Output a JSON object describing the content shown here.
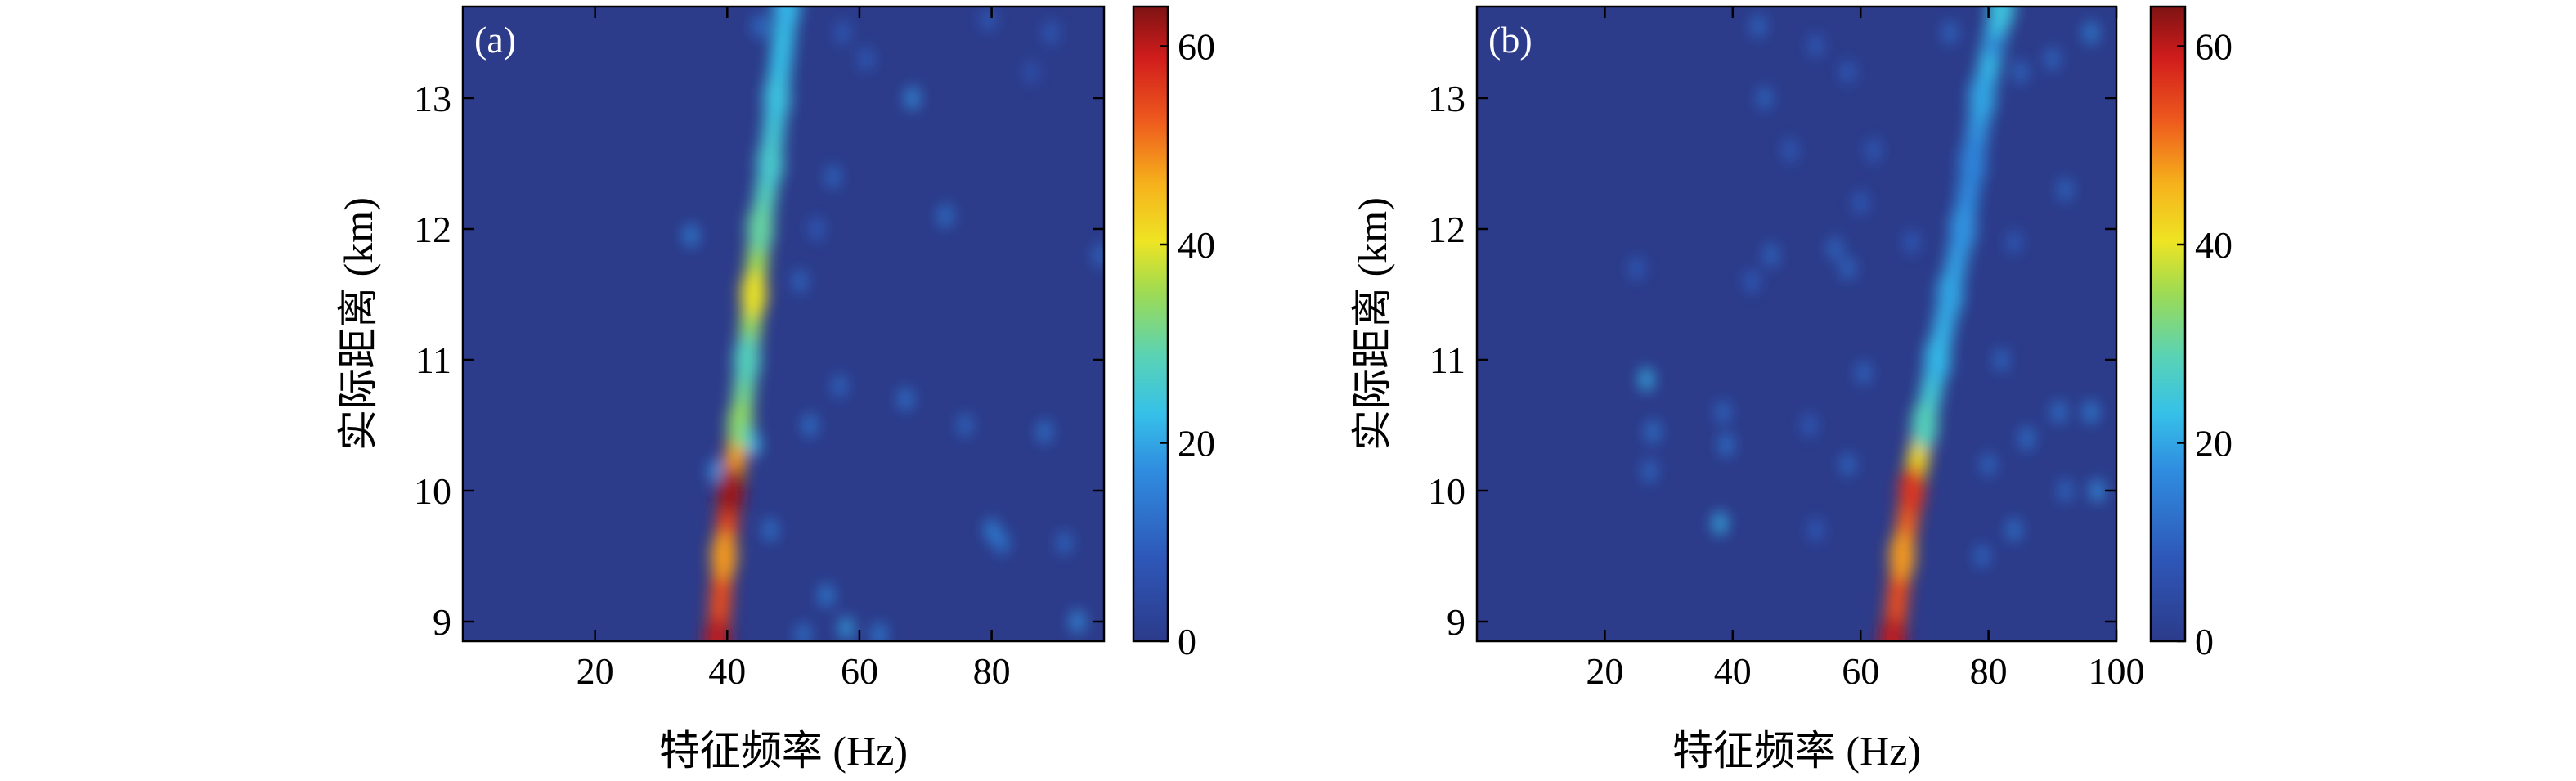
{
  "chart_data": [
    {
      "type": "heatmap",
      "panel_label": "(a)",
      "xlabel": "特征频率 (Hz)",
      "ylabel": "实际距离 (km)",
      "xlim": [
        0,
        97
      ],
      "ylim": [
        8.85,
        13.7
      ],
      "xticks": [
        20,
        40,
        60,
        80
      ],
      "yticks": [
        9,
        10,
        11,
        12,
        13
      ],
      "colorbar": {
        "range": [
          0,
          64
        ],
        "ticks": [
          0,
          20,
          40,
          60
        ]
      },
      "background_value": 5,
      "ridges": [
        {
          "points": [
            [
              38.5,
              8.85
            ],
            [
              39.5,
              9.5
            ],
            [
              40.5,
              10.0
            ],
            [
              42,
              10.5
            ],
            [
              43,
              11.0
            ],
            [
              44,
              11.5
            ],
            [
              45,
              12.0
            ],
            [
              46.5,
              12.5
            ],
            [
              47.5,
              13.0
            ],
            [
              49,
              13.7
            ]
          ],
          "values": [
            60,
            48,
            62,
            34,
            28,
            40,
            30,
            26,
            24,
            22
          ]
        }
      ],
      "spots": [
        {
          "x": 43,
          "y": 10.45,
          "value": 30
        },
        {
          "x": 38.2,
          "y": 10.15,
          "value": 18
        },
        {
          "x": 44,
          "y": 10.35,
          "value": 22
        },
        {
          "x": 34.5,
          "y": 11.95,
          "value": 16
        },
        {
          "x": 46.5,
          "y": 9.7,
          "value": 14
        },
        {
          "x": 51,
          "y": 11.6,
          "value": 12
        },
        {
          "x": 56,
          "y": 12.4,
          "value": 12
        },
        {
          "x": 52.5,
          "y": 10.5,
          "value": 14
        },
        {
          "x": 57,
          "y": 10.8,
          "value": 12
        },
        {
          "x": 53.5,
          "y": 12.0,
          "value": 10
        },
        {
          "x": 55,
          "y": 9.2,
          "value": 16
        },
        {
          "x": 73,
          "y": 12.1,
          "value": 14
        },
        {
          "x": 68,
          "y": 13.0,
          "value": 18
        },
        {
          "x": 61,
          "y": 13.3,
          "value": 10
        },
        {
          "x": 67,
          "y": 10.7,
          "value": 14
        },
        {
          "x": 76,
          "y": 10.5,
          "value": 12
        },
        {
          "x": 88,
          "y": 10.45,
          "value": 14
        },
        {
          "x": 80,
          "y": 9.7,
          "value": 16
        },
        {
          "x": 81.5,
          "y": 9.6,
          "value": 14
        },
        {
          "x": 91,
          "y": 9.6,
          "value": 12
        },
        {
          "x": 93,
          "y": 9.0,
          "value": 18
        },
        {
          "x": 58,
          "y": 8.95,
          "value": 20
        },
        {
          "x": 63,
          "y": 8.9,
          "value": 16
        },
        {
          "x": 51.5,
          "y": 8.9,
          "value": 14
        },
        {
          "x": 96.5,
          "y": 11.8,
          "value": 12
        },
        {
          "x": 45,
          "y": 13.55,
          "value": 14
        },
        {
          "x": 89,
          "y": 13.5,
          "value": 10
        },
        {
          "x": 79.5,
          "y": 13.6,
          "value": 10
        },
        {
          "x": 86,
          "y": 13.2,
          "value": 8
        },
        {
          "x": 57.5,
          "y": 13.5,
          "value": 10
        }
      ]
    },
    {
      "type": "heatmap",
      "panel_label": "(b)",
      "xlabel": "特征频率 (Hz)",
      "ylabel": "实际距离 (km)",
      "xlim": [
        0,
        100
      ],
      "ylim": [
        8.85,
        13.7
      ],
      "xticks": [
        20,
        40,
        60,
        80,
        100
      ],
      "yticks": [
        9,
        10,
        11,
        12,
        13
      ],
      "colorbar": {
        "range": [
          0,
          64
        ],
        "ticks": [
          0,
          20,
          40,
          60
        ]
      },
      "background_value": 5,
      "ridges": [
        {
          "points": [
            [
              65,
              8.85
            ],
            [
              66.5,
              9.5
            ],
            [
              68,
              10.0
            ],
            [
              70,
              10.5
            ],
            [
              72,
              11.0
            ],
            [
              74,
              11.5
            ],
            [
              76,
              12.0
            ],
            [
              77.5,
              12.5
            ],
            [
              79,
              13.0
            ],
            [
              82,
              13.7
            ]
          ],
          "values": [
            60,
            48,
            56,
            28,
            22,
            20,
            18,
            16,
            20,
            24
          ]
        }
      ],
      "spots": [
        {
          "x": 26.5,
          "y": 10.85,
          "value": 22
        },
        {
          "x": 27.5,
          "y": 10.45,
          "value": 14
        },
        {
          "x": 27,
          "y": 10.15,
          "value": 12
        },
        {
          "x": 38,
          "y": 9.75,
          "value": 22
        },
        {
          "x": 39,
          "y": 10.35,
          "value": 14
        },
        {
          "x": 38.5,
          "y": 10.6,
          "value": 12
        },
        {
          "x": 25,
          "y": 11.7,
          "value": 10
        },
        {
          "x": 43,
          "y": 11.6,
          "value": 10
        },
        {
          "x": 46,
          "y": 11.8,
          "value": 12
        },
        {
          "x": 56,
          "y": 11.85,
          "value": 12
        },
        {
          "x": 58,
          "y": 11.7,
          "value": 12
        },
        {
          "x": 49,
          "y": 12.6,
          "value": 10
        },
        {
          "x": 45,
          "y": 13.0,
          "value": 12
        },
        {
          "x": 44,
          "y": 13.55,
          "value": 12
        },
        {
          "x": 53,
          "y": 13.4,
          "value": 10
        },
        {
          "x": 58,
          "y": 13.2,
          "value": 10
        },
        {
          "x": 62,
          "y": 12.6,
          "value": 10
        },
        {
          "x": 74,
          "y": 13.5,
          "value": 12
        },
        {
          "x": 81,
          "y": 13.4,
          "value": 14
        },
        {
          "x": 85,
          "y": 13.2,
          "value": 12
        },
        {
          "x": 90,
          "y": 13.3,
          "value": 12
        },
        {
          "x": 96,
          "y": 13.5,
          "value": 16
        },
        {
          "x": 92,
          "y": 12.3,
          "value": 12
        },
        {
          "x": 84,
          "y": 11.9,
          "value": 10
        },
        {
          "x": 82,
          "y": 11.0,
          "value": 12
        },
        {
          "x": 80,
          "y": 10.2,
          "value": 12
        },
        {
          "x": 86,
          "y": 10.4,
          "value": 14
        },
        {
          "x": 91,
          "y": 10.6,
          "value": 14
        },
        {
          "x": 96,
          "y": 10.6,
          "value": 16
        },
        {
          "x": 97,
          "y": 10.0,
          "value": 18
        },
        {
          "x": 92,
          "y": 10.0,
          "value": 12
        },
        {
          "x": 84,
          "y": 9.7,
          "value": 14
        },
        {
          "x": 79,
          "y": 9.5,
          "value": 12
        },
        {
          "x": 60.5,
          "y": 10.9,
          "value": 12
        },
        {
          "x": 58,
          "y": 10.2,
          "value": 12
        },
        {
          "x": 52,
          "y": 10.5,
          "value": 10
        },
        {
          "x": 53,
          "y": 9.7,
          "value": 10
        },
        {
          "x": 68,
          "y": 11.9,
          "value": 10
        },
        {
          "x": 60,
          "y": 12.2,
          "value": 10
        }
      ]
    }
  ]
}
